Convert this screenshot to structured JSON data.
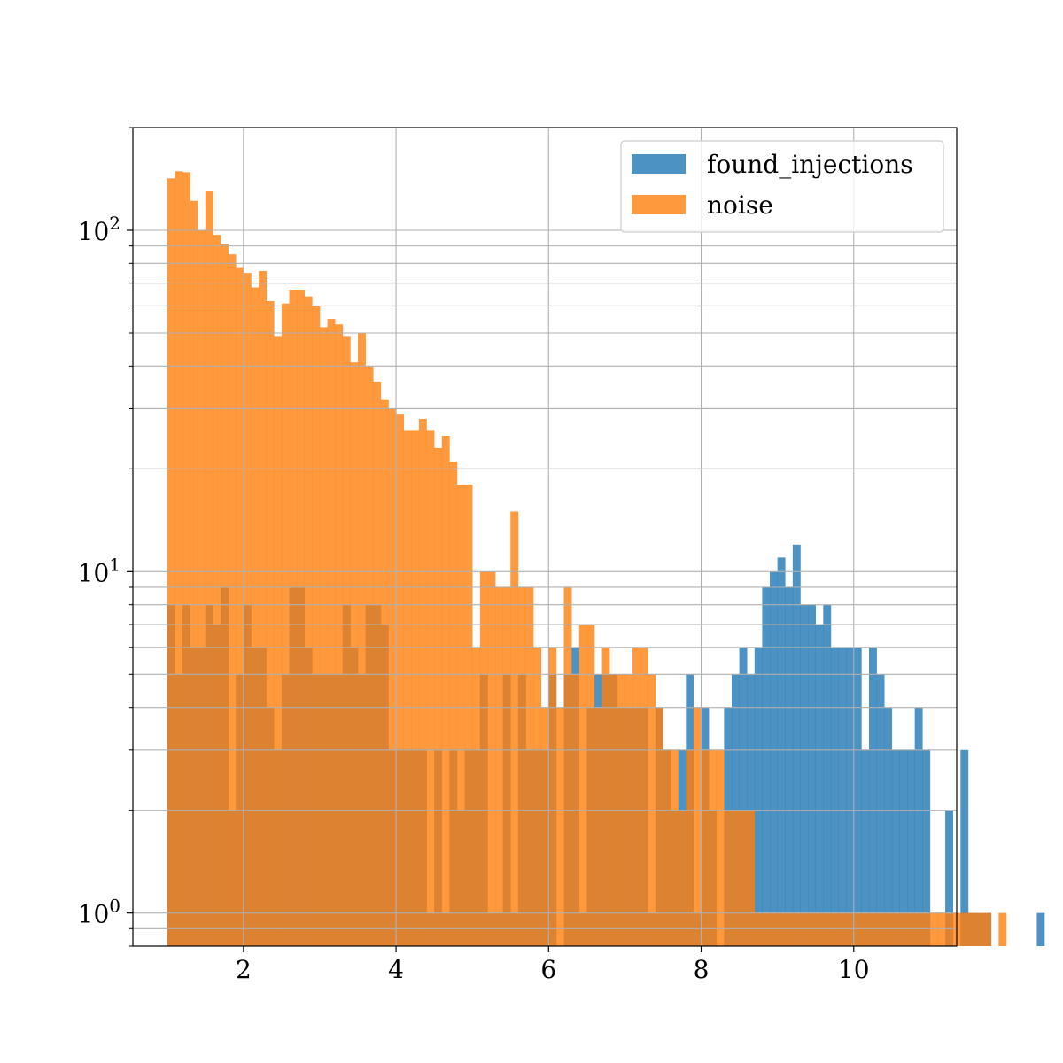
{
  "chart_data": {
    "type": "bar",
    "title": "",
    "xlabel": "",
    "ylabel": "",
    "yscale": "log",
    "xlim": [
      0.55,
      11.35
    ],
    "ylim": [
      0.8,
      200
    ],
    "grid": true,
    "legend_position": "top-right",
    "bin_width": 0.1,
    "x_ticks": [
      2,
      4,
      6,
      8,
      10
    ],
    "y_ticks": [
      {
        "value": 1,
        "base": "10",
        "exp": "0"
      },
      {
        "value": 10,
        "base": "10",
        "exp": "1"
      },
      {
        "value": 100,
        "base": "10",
        "exp": "2"
      }
    ],
    "series": [
      {
        "name": "found_injections",
        "color": "#1f77b4",
        "alpha": 0.8,
        "x_start": 1.0,
        "values": [
          8,
          5,
          8,
          6,
          6,
          8,
          7,
          9,
          2,
          5,
          8,
          6,
          6,
          4,
          3,
          5,
          9,
          9,
          6,
          5,
          5,
          5,
          5,
          8,
          6,
          5,
          8,
          8,
          7,
          3,
          3,
          3,
          3,
          3,
          1,
          3,
          1,
          3,
          2,
          3,
          3,
          5,
          1,
          1,
          5,
          1,
          5,
          3,
          3,
          3,
          5,
          0,
          5,
          6,
          1,
          4,
          5,
          5,
          5,
          4,
          4,
          4,
          4,
          1,
          4,
          3,
          2,
          3,
          5,
          1,
          4,
          2,
          0,
          4,
          5,
          6,
          5,
          6,
          9,
          10,
          11,
          9,
          12,
          8,
          8,
          7,
          8,
          6,
          6,
          6,
          6,
          3,
          6,
          5,
          4,
          3,
          3,
          3,
          4,
          3,
          0,
          0,
          2,
          0,
          3,
          1,
          1,
          1,
          0,
          0,
          0,
          0,
          0,
          0,
          1
        ]
      },
      {
        "name": "noise",
        "color": "#ff7f0e",
        "alpha": 0.8,
        "x_start": 1.0,
        "values": [
          142,
          149,
          148,
          122,
          100,
          130,
          97,
          91,
          85,
          78,
          75,
          68,
          76,
          62,
          49,
          61,
          67,
          67,
          64,
          60,
          52,
          55,
          53,
          49,
          41,
          50,
          40,
          36,
          32,
          30,
          29,
          26,
          26,
          28,
          26,
          23,
          25,
          21,
          18,
          18,
          6,
          10,
          10,
          9,
          9,
          15,
          9,
          9,
          6,
          4,
          6,
          4,
          9,
          5,
          7,
          7,
          4,
          6,
          5,
          5,
          5,
          6,
          6,
          5,
          4,
          3,
          3,
          2,
          3,
          4,
          3,
          3,
          3,
          2,
          2,
          2,
          2,
          1,
          1,
          1,
          1,
          1,
          1,
          1,
          1,
          1,
          1,
          1,
          1,
          1,
          1,
          1,
          1,
          1,
          1,
          1,
          1,
          1,
          1,
          1,
          1,
          1,
          1,
          1,
          1,
          1,
          1,
          1,
          0,
          1
        ]
      }
    ]
  }
}
